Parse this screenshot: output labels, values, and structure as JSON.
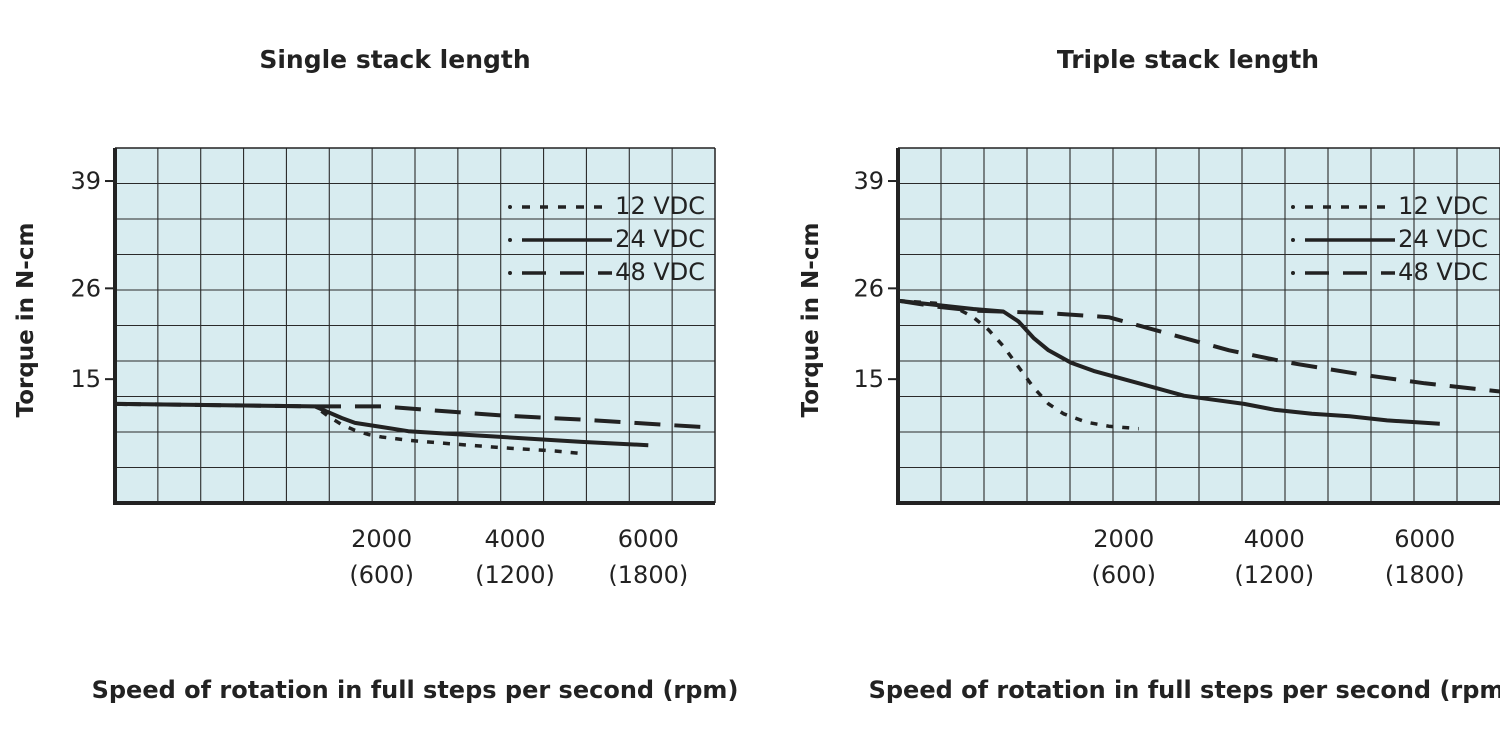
{
  "chart_data": [
    {
      "type": "line",
      "title": "Single stack length",
      "xlabel": "Speed of rotation in full steps per second (rpm)",
      "ylabel": "Torque in N-cm",
      "xlim": [
        -2000,
        7000
      ],
      "ylim": [
        0,
        43
      ],
      "x_ticks": [
        {
          "value": 2000,
          "label": "2000",
          "sublabel": "(600)"
        },
        {
          "value": 4000,
          "label": "4000",
          "sublabel": "(1200)"
        },
        {
          "value": 6000,
          "label": "6000",
          "sublabel": "(1800)"
        }
      ],
      "y_ticks": [
        {
          "value": 15,
          "label": "15"
        },
        {
          "value": 26,
          "label": "26"
        },
        {
          "value": 39,
          "label": "39"
        }
      ],
      "grid": true,
      "legend_position": "top-right",
      "series": [
        {
          "name": "12 VDC",
          "style": "dotted",
          "points": [
            [
              -2000,
              12.0
            ],
            [
              1000,
              11.7
            ],
            [
              1200,
              10.5
            ],
            [
              1400,
              9.5
            ],
            [
              1600,
              8.8
            ],
            [
              1800,
              8.3
            ],
            [
              2000,
              8.0
            ],
            [
              2400,
              7.6
            ],
            [
              3000,
              7.2
            ],
            [
              3800,
              6.7
            ],
            [
              4600,
              6.3
            ],
            [
              5000,
              6.0
            ]
          ]
        },
        {
          "name": "24 VDC",
          "style": "solid",
          "points": [
            [
              -2000,
              12.0
            ],
            [
              1000,
              11.7
            ],
            [
              1200,
              11.0
            ],
            [
              1400,
              10.3
            ],
            [
              1600,
              9.7
            ],
            [
              2000,
              9.2
            ],
            [
              2400,
              8.7
            ],
            [
              3000,
              8.4
            ],
            [
              3600,
              8.1
            ],
            [
              4200,
              7.8
            ],
            [
              5000,
              7.4
            ],
            [
              6000,
              7.0
            ]
          ]
        },
        {
          "name": "48 VDC",
          "style": "dashed",
          "points": [
            [
              -2000,
              12.0
            ],
            [
              1000,
              11.7
            ],
            [
              2000,
              11.7
            ],
            [
              2800,
              11.2
            ],
            [
              3800,
              10.6
            ],
            [
              5000,
              10.1
            ],
            [
              6000,
              9.6
            ],
            [
              6800,
              9.2
            ]
          ]
        }
      ]
    },
    {
      "type": "line",
      "title": "Triple stack length",
      "xlabel": "Speed of rotation in full steps per second (rpm)",
      "ylabel": "Torque in N-cm",
      "xlim": [
        -1000,
        7000
      ],
      "ylim": [
        0,
        43
      ],
      "x_ticks": [
        {
          "value": 2000,
          "label": "2000",
          "sublabel": "(600)"
        },
        {
          "value": 4000,
          "label": "4000",
          "sublabel": "(1200)"
        },
        {
          "value": 6000,
          "label": "6000",
          "sublabel": "(1800)"
        }
      ],
      "y_ticks": [
        {
          "value": 15,
          "label": "15"
        },
        {
          "value": 26,
          "label": "26"
        },
        {
          "value": 39,
          "label": "39"
        }
      ],
      "grid": true,
      "legend_position": "top-right",
      "series": [
        {
          "name": "12 VDC",
          "style": "dotted",
          "points": [
            [
              -1000,
              24.5
            ],
            [
              -500,
              24.2
            ],
            [
              -200,
              23.5
            ],
            [
              0,
              22.5
            ],
            [
              200,
              21.0
            ],
            [
              400,
              19.0
            ],
            [
              600,
              16.5
            ],
            [
              800,
              14.0
            ],
            [
              1000,
              12.0
            ],
            [
              1200,
              10.8
            ],
            [
              1500,
              9.8
            ],
            [
              1800,
              9.3
            ],
            [
              2200,
              9.0
            ]
          ]
        },
        {
          "name": "24 VDC",
          "style": "solid",
          "points": [
            [
              -1000,
              24.5
            ],
            [
              -500,
              24.0
            ],
            [
              0,
              23.5
            ],
            [
              400,
              23.2
            ],
            [
              600,
              22.0
            ],
            [
              800,
              20.0
            ],
            [
              1000,
              18.5
            ],
            [
              1300,
              17.0
            ],
            [
              1600,
              16.0
            ],
            [
              2000,
              15.0
            ],
            [
              2400,
              14.0
            ],
            [
              2800,
              13.0
            ],
            [
              3200,
              12.5
            ],
            [
              3600,
              12.0
            ],
            [
              4000,
              11.3
            ],
            [
              4500,
              10.8
            ],
            [
              5000,
              10.5
            ],
            [
              5500,
              10.0
            ],
            [
              6200,
              9.6
            ]
          ]
        },
        {
          "name": "48 VDC",
          "style": "dashed",
          "points": [
            [
              -1000,
              24.5
            ],
            [
              -500,
              23.8
            ],
            [
              0,
              23.3
            ],
            [
              1000,
              23.0
            ],
            [
              1800,
              22.5
            ],
            [
              2600,
              20.5
            ],
            [
              3400,
              18.5
            ],
            [
              4200,
              17.0
            ],
            [
              5200,
              15.5
            ],
            [
              6000,
              14.5
            ],
            [
              7000,
              13.5
            ]
          ]
        }
      ]
    }
  ]
}
